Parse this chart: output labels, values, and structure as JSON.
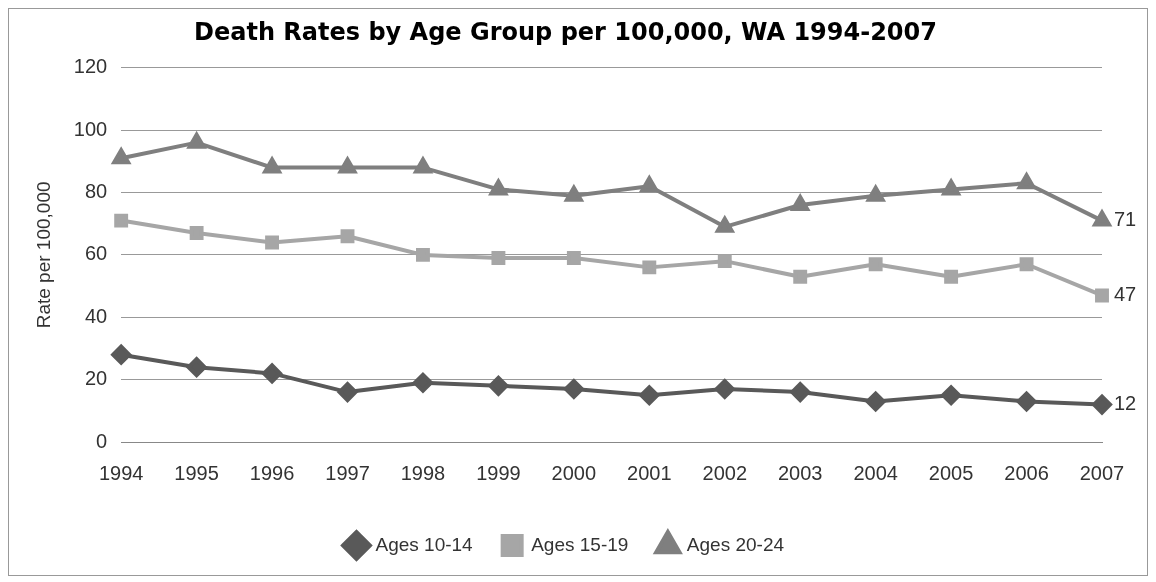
{
  "chart_data": {
    "type": "line",
    "title": "Death Rates by Age Group per 100,000, WA 1994-2007",
    "ylabel": "Rate per 100,000",
    "categories": [
      "1994",
      "1995",
      "1996",
      "1997",
      "1998",
      "1999",
      "2000",
      "2001",
      "2002",
      "2003",
      "2004",
      "2005",
      "2006",
      "2007"
    ],
    "series": [
      {
        "name": "Ages 10-14",
        "color": "#595959",
        "marker": "diamond",
        "values": [
          28,
          24,
          22,
          16,
          19,
          18,
          17,
          15,
          17,
          16,
          13,
          15,
          13,
          12
        ],
        "value_labels": [
          null,
          null,
          null,
          null,
          null,
          null,
          null,
          null,
          null,
          null,
          null,
          null,
          null,
          "12"
        ]
      },
      {
        "name": "Ages 15-19",
        "color": "#a6a6a6",
        "marker": "square",
        "values": [
          71,
          67,
          64,
          66,
          60,
          59,
          59,
          56,
          58,
          53,
          57,
          53,
          57,
          47
        ],
        "value_labels": [
          null,
          null,
          null,
          null,
          null,
          null,
          null,
          null,
          null,
          null,
          null,
          null,
          null,
          "47"
        ]
      },
      {
        "name": "Ages 20-24",
        "color": "#7f7f7f",
        "marker": "triangle",
        "values": [
          91,
          96,
          88,
          88,
          88,
          81,
          79,
          82,
          69,
          76,
          79,
          81,
          83,
          71
        ],
        "value_labels": [
          null,
          null,
          null,
          null,
          null,
          null,
          null,
          null,
          null,
          null,
          null,
          null,
          null,
          "71"
        ]
      }
    ],
    "ylim": [
      0,
      120
    ],
    "yticks": [
      0,
      20,
      40,
      60,
      80,
      100,
      120
    ],
    "grid": "y",
    "legend": "bottom"
  }
}
